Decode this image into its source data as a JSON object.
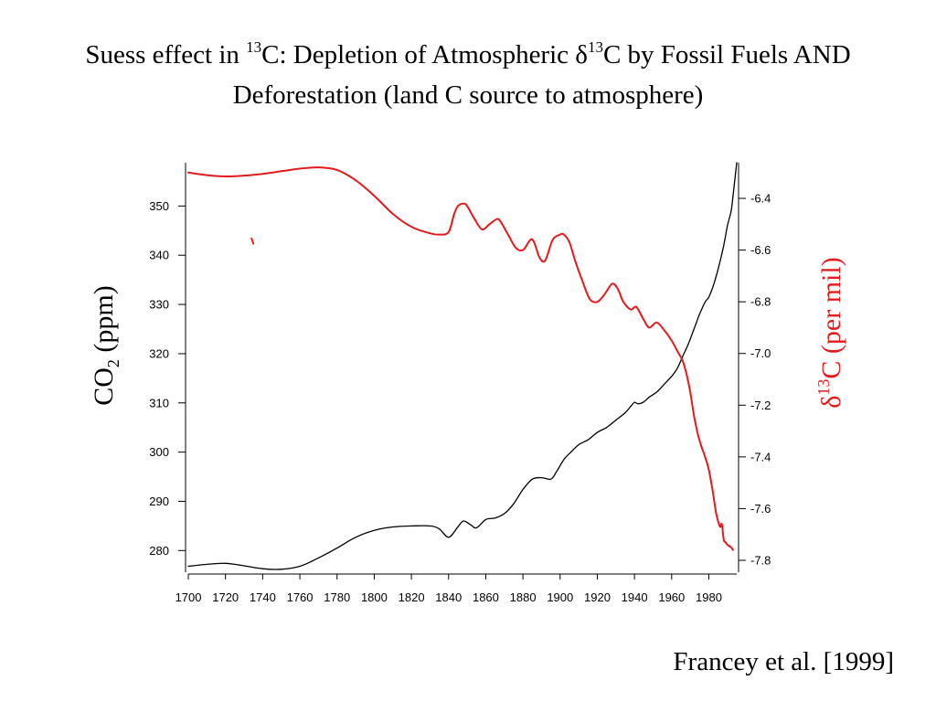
{
  "title": {
    "line1_a": "Suess effect in ",
    "line1_sup1": "13",
    "line1_b": "C: Depletion of Atmospheric δ",
    "line1_sup2": "13",
    "line1_c": "C by Fossil Fuels AND",
    "line2": "Deforestation (land C source to atmosphere)"
  },
  "citation": "Francey et al. [1999]",
  "colors": {
    "co2": "#000000",
    "d13c": "#e41a1c"
  },
  "chart_data": {
    "type": "line",
    "grid": false,
    "xlabel": "",
    "xlim": [
      1699,
      1995
    ],
    "xticks": [
      "1700",
      "1720",
      "1740",
      "1760",
      "1780",
      "1800",
      "1820",
      "1840",
      "1860",
      "1880",
      "1900",
      "1920",
      "1940",
      "1960",
      "1980"
    ],
    "ylabel_left": {
      "main": "CO",
      "sub": "2",
      "rest": " (ppm)"
    },
    "ylabel_right": {
      "pre": "δ",
      "sup": "13",
      "rest": "C (per mil)"
    },
    "ylim_left": [
      275.6,
      358.8
    ],
    "ylim_right": [
      -7.846,
      -6.262
    ],
    "yticks_left": [
      "280",
      "290",
      "300",
      "310",
      "320",
      "330",
      "340",
      "350"
    ],
    "yticks_right": [
      "-7.8",
      "-7.6",
      "-7.4",
      "-7.2",
      "-7.0",
      "-6.8",
      "-6.6",
      "-6.4"
    ],
    "series": [
      {
        "axis": "left",
        "color": "#000000",
        "x": [
          1700,
          1710,
          1720,
          1730,
          1740,
          1750,
          1760,
          1770,
          1780,
          1790,
          1800,
          1810,
          1820,
          1830,
          1835,
          1840,
          1845,
          1848,
          1852,
          1855,
          1860,
          1865,
          1870,
          1875,
          1880,
          1885,
          1890,
          1895,
          1898,
          1902,
          1905,
          1910,
          1915,
          1920,
          1925,
          1930,
          1935,
          1938,
          1940,
          1942,
          1945,
          1948,
          1952,
          1956,
          1960,
          1963,
          1966,
          1969,
          1972,
          1975,
          1978,
          1980,
          1983,
          1986,
          1988,
          1990,
          1992,
          1993,
          1995
        ],
        "values": [
          276.8,
          277.2,
          277.4,
          276.9,
          276.3,
          276.2,
          276.8,
          278.5,
          280.5,
          282.7,
          284.1,
          284.8,
          285.0,
          285.0,
          284.4,
          282.7,
          284.8,
          286.0,
          285.2,
          284.6,
          286.3,
          286.6,
          287.5,
          289.5,
          292.4,
          294.5,
          294.8,
          294.5,
          296.0,
          298.5,
          299.7,
          301.5,
          302.5,
          304.0,
          305.0,
          306.5,
          308.0,
          309.3,
          310.1,
          309.8,
          310.2,
          311.2,
          312.2,
          313.8,
          315.4,
          317.0,
          319.5,
          322.0,
          325.0,
          328.0,
          330.5,
          331.5,
          334.5,
          338.7,
          342.0,
          346.0,
          349.0,
          352.0,
          358.8
        ]
      },
      {
        "axis": "right",
        "color": "#e41a1c",
        "x": [
          1700,
          1710,
          1720,
          1730,
          1740,
          1750,
          1760,
          1770,
          1780,
          1790,
          1800,
          1810,
          1820,
          1830,
          1835,
          1840,
          1843,
          1845,
          1848,
          1850,
          1854,
          1858,
          1862,
          1866,
          1868,
          1872,
          1876,
          1880,
          1884,
          1886,
          1889,
          1892,
          1896,
          1900,
          1902,
          1905,
          1908,
          1912,
          1916,
          1920,
          1924,
          1928,
          1931,
          1934,
          1938,
          1941,
          1945,
          1948,
          1952,
          1956,
          1960,
          1963,
          1966,
          1968,
          1970,
          1972,
          1974,
          1976,
          1978,
          1980,
          1982,
          1984,
          1986,
          1987,
          1988,
          1989,
          1990,
          1992,
          1993
        ],
        "values": [
          -6.3,
          -6.31,
          -6.315,
          -6.312,
          -6.305,
          -6.295,
          -6.285,
          -6.28,
          -6.29,
          -6.33,
          -6.39,
          -6.46,
          -6.51,
          -6.535,
          -6.54,
          -6.53,
          -6.46,
          -6.43,
          -6.42,
          -6.43,
          -6.48,
          -6.52,
          -6.5,
          -6.48,
          -6.49,
          -6.54,
          -6.59,
          -6.6,
          -6.56,
          -6.57,
          -6.63,
          -6.64,
          -6.56,
          -6.54,
          -6.54,
          -6.57,
          -6.64,
          -6.72,
          -6.79,
          -6.8,
          -6.77,
          -6.73,
          -6.75,
          -6.8,
          -6.83,
          -6.82,
          -6.87,
          -6.9,
          -6.88,
          -6.91,
          -6.95,
          -6.99,
          -7.03,
          -7.08,
          -7.15,
          -7.24,
          -7.31,
          -7.36,
          -7.4,
          -7.45,
          -7.53,
          -7.62,
          -7.67,
          -7.66,
          -7.72,
          -7.73,
          -7.74,
          -7.75,
          -7.76
        ]
      },
      {
        "axis": "right",
        "color": "#e41a1c",
        "x": [
          1734,
          1735
        ],
        "values": [
          -6.555,
          -6.575
        ]
      }
    ]
  }
}
